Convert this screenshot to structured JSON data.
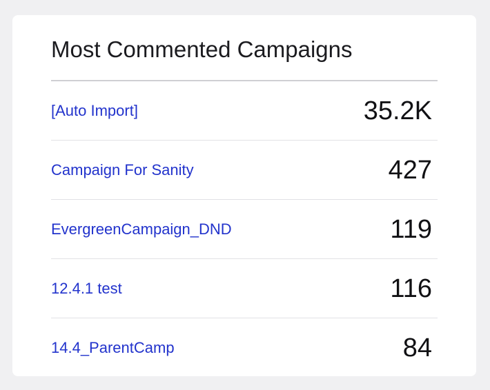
{
  "card": {
    "title": "Most Commented Campaigns",
    "rows": [
      {
        "campaign": "[Auto Import]",
        "comments": "35.2K"
      },
      {
        "campaign": "Campaign For Sanity",
        "comments": "427"
      },
      {
        "campaign": "EvergreenCampaign_DND",
        "comments": "119"
      },
      {
        "campaign": "12.4.1 test",
        "comments": "116"
      },
      {
        "campaign": "14.4_ParentCamp",
        "comments": "84"
      }
    ]
  },
  "colors": {
    "background": "#f0f0f2",
    "card": "#ffffff",
    "link": "#2233cc",
    "text": "#111114",
    "divider": "#cfcfd3"
  }
}
